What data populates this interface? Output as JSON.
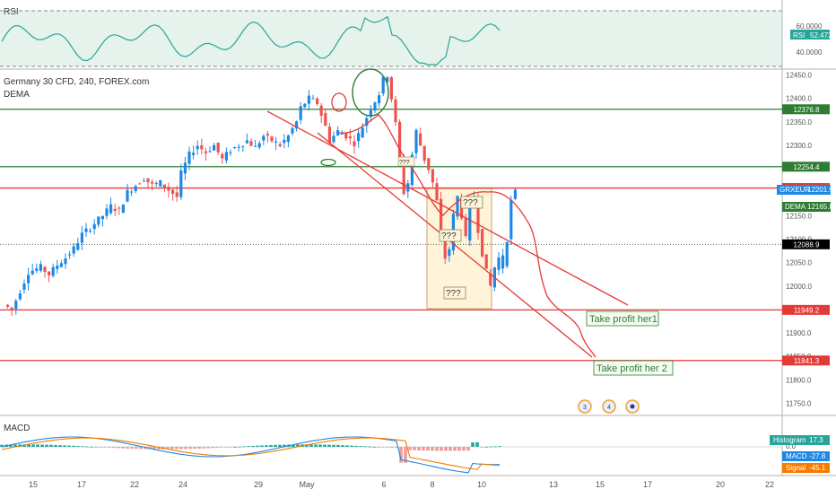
{
  "chart_data": {
    "type": "candlestick",
    "symbol": "Germany 30 CFD, 240, FOREX.com",
    "overlay_label": "DEMA",
    "x_tick_labels": [
      "15",
      "17",
      "22",
      "24",
      "29",
      "May",
      "6",
      "8",
      "10",
      "13",
      "15",
      "17",
      "20",
      "22"
    ],
    "price_axis_ticks": [
      "12450.0",
      "12400.0",
      "12350.0",
      "12300.0",
      "12250.0",
      "12150.0",
      "12100.0",
      "12050.0",
      "12000.0",
      "11950.0",
      "11900.0",
      "11850.0",
      "11800.0",
      "11750.0"
    ],
    "price_range": [
      11730,
      12470
    ],
    "close_path": [
      [
        0,
        11960
      ],
      [
        2,
        11950
      ],
      [
        4,
        11990
      ],
      [
        6,
        12030
      ],
      [
        9,
        12040
      ],
      [
        11,
        12025
      ],
      [
        13,
        12045
      ],
      [
        15,
        12060
      ],
      [
        17,
        12080
      ],
      [
        19,
        12110
      ],
      [
        21,
        12125
      ],
      [
        24,
        12150
      ],
      [
        26,
        12170
      ],
      [
        28,
        12160
      ],
      [
        30,
        12200
      ],
      [
        32,
        12215
      ],
      [
        34,
        12230
      ],
      [
        36,
        12215
      ],
      [
        38,
        12220
      ],
      [
        40,
        12205
      ],
      [
        42,
        12190
      ],
      [
        43,
        12240
      ],
      [
        45,
        12280
      ],
      [
        47,
        12300
      ],
      [
        49,
        12285
      ],
      [
        51,
        12300
      ],
      [
        53,
        12270
      ],
      [
        55,
        12290
      ],
      [
        57,
        12300
      ],
      [
        59,
        12310
      ],
      [
        61,
        12295
      ],
      [
        63,
        12320
      ],
      [
        65,
        12310
      ],
      [
        67,
        12300
      ],
      [
        69,
        12320
      ],
      [
        71,
        12350
      ],
      [
        72,
        12380
      ],
      [
        74,
        12400
      ],
      [
        76,
        12390
      ],
      [
        78,
        12340
      ],
      [
        79,
        12310
      ],
      [
        81,
        12330
      ],
      [
        83,
        12320
      ],
      [
        85,
        12305
      ],
      [
        87,
        12340
      ],
      [
        89,
        12380
      ],
      [
        91,
        12410
      ],
      [
        92,
        12440
      ],
      [
        93,
        12450
      ],
      [
        94,
        12400
      ],
      [
        95,
        12345
      ],
      [
        96,
        12270
      ],
      [
        97,
        12200
      ],
      [
        98,
        12220
      ],
      [
        99,
        12280
      ],
      [
        100,
        12330
      ],
      [
        101,
        12300
      ],
      [
        102,
        12270
      ],
      [
        103,
        12250
      ],
      [
        104,
        12220
      ],
      [
        105,
        12180
      ],
      [
        106,
        12100
      ],
      [
        107,
        12060
      ],
      [
        108,
        12080
      ],
      [
        109,
        12150
      ],
      [
        110,
        12190
      ],
      [
        111,
        12150
      ],
      [
        112,
        12100
      ],
      [
        113,
        12180
      ],
      [
        114,
        12190
      ],
      [
        115,
        12120
      ],
      [
        116,
        12070
      ],
      [
        117,
        12030
      ],
      [
        118,
        12000
      ],
      [
        119,
        12040
      ],
      [
        120,
        12060
      ],
      [
        121,
        12040
      ],
      [
        122,
        12100
      ],
      [
        123,
        12180
      ],
      [
        124,
        12200
      ]
    ],
    "horizontal_levels": [
      {
        "value": 12376.8,
        "kind": "resistance"
      },
      {
        "value": 12254.4,
        "kind": "support"
      },
      {
        "value": 12208.9,
        "kind": "resistance"
      },
      {
        "value": 11949.2,
        "kind": "target"
      },
      {
        "value": 11841.3,
        "kind": "target"
      }
    ],
    "price_dotted_line": 12088.9,
    "channel": {
      "upper": [
        [
          64,
          12380
        ],
        [
          158,
          11960
        ]
      ],
      "lower": [
        [
          74,
          12330
        ],
        [
          150,
          11840
        ]
      ]
    },
    "annotations": [
      "???",
      "???",
      "???",
      "???",
      "Take profit her1",
      "Take profit her 2"
    ],
    "rsi": {
      "label": "RSI",
      "value": "52.4733",
      "ticks": [
        "60.0000",
        "40.0000"
      ]
    },
    "macd": {
      "label": "MACD",
      "histogram_label": "Histogram",
      "histogram_value": "17.3",
      "macd_label": "MACD",
      "macd_value": "-27.8",
      "signal_label": "Signal",
      "signal_value": "-45.1",
      "ticks": [
        "0.0"
      ]
    }
  },
  "price_tags": [
    {
      "text": "12376.8",
      "color": "#2e7d32"
    },
    {
      "text": "12254.4",
      "color": "#2e7d32"
    },
    {
      "text": "12208.9",
      "color": "#e53935"
    },
    {
      "text": "12088.9",
      "color": "#000000"
    },
    {
      "text": "11949.2",
      "color": "#e53935"
    },
    {
      "text": "11841.3",
      "color": "#e53935"
    }
  ],
  "series_tags": [
    {
      "label": "GRXEUR",
      "value": "12201.9",
      "color": "#1e88e5"
    },
    {
      "label": "DEMA",
      "value": "12165.8",
      "color": "#2e7d32"
    }
  ],
  "event_badges": [
    "3",
    "4",
    ""
  ],
  "colors": {
    "up": "#26a69a",
    "down": "#ef5350",
    "blue_candle": "#1e88e5",
    "red_line": "#e53935",
    "green_line": "#2e7d32",
    "rsi_line": "#26a69a",
    "dema_line": "#e53935",
    "box_fill": "#fff3da"
  }
}
